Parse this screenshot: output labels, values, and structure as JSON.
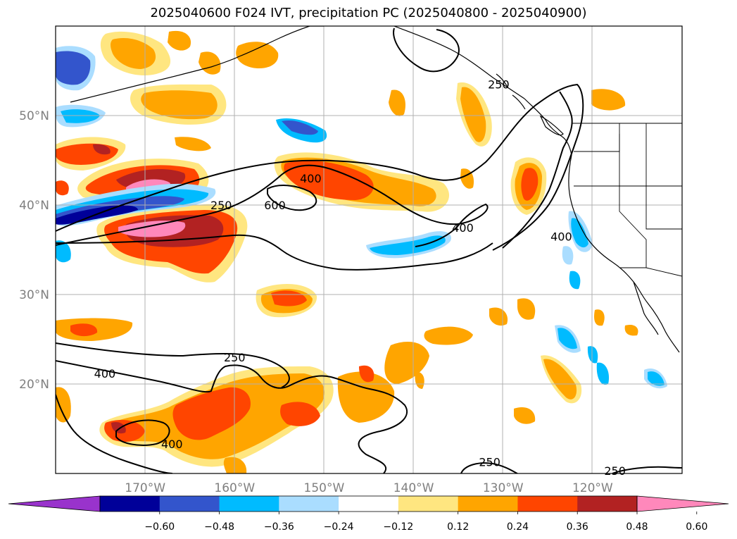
{
  "chart_data": {
    "type": "heatmap",
    "title": "2025040600 F024 IVT, precipitation PC (2025040800 - 2025040900)",
    "projection": "map",
    "lon_range": [
      -180,
      -110
    ],
    "lat_range": [
      10,
      60
    ],
    "x_ticks": [
      {
        "lon": -170,
        "label": "170°W"
      },
      {
        "lon": -160,
        "label": "160°W"
      },
      {
        "lon": -150,
        "label": "150°W"
      },
      {
        "lon": -140,
        "label": "140°W"
      },
      {
        "lon": -130,
        "label": "130°W"
      },
      {
        "lon": -120,
        "label": "120°W"
      }
    ],
    "y_ticks": [
      {
        "lat": 20,
        "label": "20°N"
      },
      {
        "lat": 30,
        "label": "30°N"
      },
      {
        "lat": 40,
        "label": "40°N"
      },
      {
        "lat": 50,
        "label": "50°N"
      }
    ],
    "grid": true,
    "colorbar": {
      "orientation": "horizontal",
      "extend": "both",
      "colors": [
        "#9933cc",
        "#000099",
        "#3355cc",
        "#00bbff",
        "#aaddff",
        "#ffffff",
        "#ffe680",
        "#ffa500",
        "#ff4500",
        "#b22222",
        "#ff88bb"
      ],
      "boundaries": [
        -0.6,
        -0.48,
        -0.36,
        -0.24,
        -0.12,
        0.12,
        0.24,
        0.36,
        0.48,
        0.6
      ],
      "tick_labels": [
        "−0.60",
        "−0.48",
        "−0.36",
        "−0.24",
        "−0.12",
        "0.12",
        "0.24",
        "0.36",
        "0.48",
        "0.60"
      ]
    },
    "ivt_contour_levels": [
      250,
      400,
      600
    ],
    "ivt_contour_labels": [
      {
        "text": "250",
        "lon": -161.5,
        "lat": 40.0
      },
      {
        "text": "250",
        "lon": -130.5,
        "lat": 53.5
      },
      {
        "text": "400",
        "lon": -151.5,
        "lat": 43.0
      },
      {
        "text": "600",
        "lon": -155.5,
        "lat": 40.0
      },
      {
        "text": "400",
        "lon": -134.5,
        "lat": 37.5
      },
      {
        "text": "400",
        "lon": -123.5,
        "lat": 36.5
      },
      {
        "text": "250",
        "lon": -160.0,
        "lat": 23.0
      },
      {
        "text": "400",
        "lon": -174.5,
        "lat": 21.2
      },
      {
        "text": "400",
        "lon": -167.0,
        "lat": 13.3
      },
      {
        "text": "250",
        "lon": -131.5,
        "lat": 11.3
      },
      {
        "text": "250",
        "lon": -117.5,
        "lat": 10.3
      }
    ]
  }
}
